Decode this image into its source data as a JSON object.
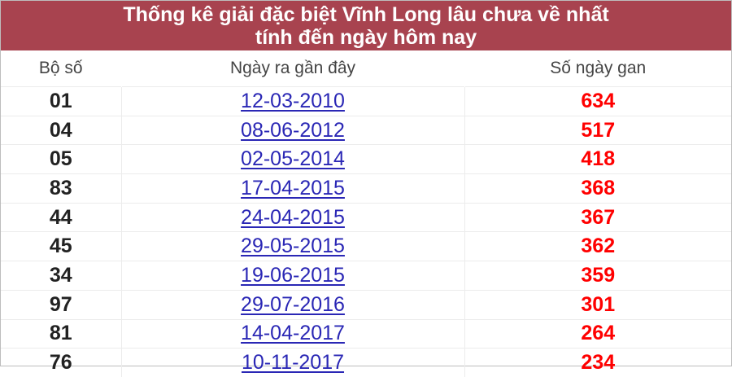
{
  "title_line1": "Thống kê giải đặc biệt Vĩnh Long lâu chưa về nhất",
  "title_line2": "tính đến ngày hôm nay",
  "columns": [
    "Bộ số",
    "Ngày ra gần đây",
    "Số ngày gan"
  ],
  "rows": [
    {
      "number": "01",
      "date": "12-03-2010",
      "days": "634"
    },
    {
      "number": "04",
      "date": "08-06-2012",
      "days": "517"
    },
    {
      "number": "05",
      "date": "02-05-2014",
      "days": "418"
    },
    {
      "number": "83",
      "date": "17-04-2015",
      "days": "368"
    },
    {
      "number": "44",
      "date": "24-04-2015",
      "days": "367"
    },
    {
      "number": "45",
      "date": "29-05-2015",
      "days": "362"
    },
    {
      "number": "34",
      "date": "19-06-2015",
      "days": "359"
    },
    {
      "number": "97",
      "date": "29-07-2016",
      "days": "301"
    },
    {
      "number": "81",
      "date": "14-04-2017",
      "days": "264"
    },
    {
      "number": "76",
      "date": "10-11-2017",
      "days": "234"
    }
  ],
  "colors": {
    "header_bg": "#a8434f",
    "link": "#2a27b5",
    "days": "#ff0000"
  }
}
